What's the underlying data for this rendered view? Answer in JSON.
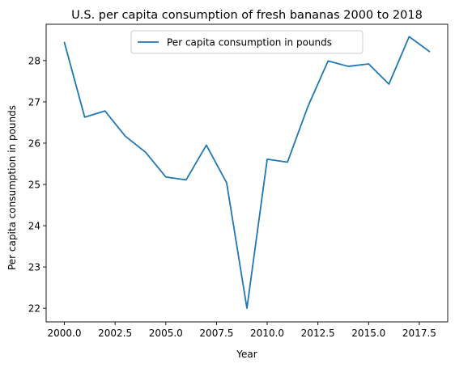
{
  "chart_data": {
    "type": "line",
    "title": "U.S. per capita consumption of fresh bananas 2000 to 2018",
    "xlabel": "Year",
    "ylabel": "Per capita consumption in pounds",
    "xlim": [
      1999.1,
      2018.9
    ],
    "ylim": [
      21.67,
      28.88
    ],
    "grid": false,
    "legend_position": "upper-center",
    "xticks": [
      {
        "value": 2000.0,
        "label": "2000.0"
      },
      {
        "value": 2002.5,
        "label": "2002.5"
      },
      {
        "value": 2005.0,
        "label": "2005.0"
      },
      {
        "value": 2007.5,
        "label": "2007.5"
      },
      {
        "value": 2010.0,
        "label": "2010.0"
      },
      {
        "value": 2012.5,
        "label": "2012.5"
      },
      {
        "value": 2015.0,
        "label": "2015.0"
      },
      {
        "value": 2017.5,
        "label": "2017.5"
      }
    ],
    "yticks": [
      {
        "value": 22,
        "label": "22"
      },
      {
        "value": 23,
        "label": "23"
      },
      {
        "value": 24,
        "label": "24"
      },
      {
        "value": 25,
        "label": "25"
      },
      {
        "value": 26,
        "label": "26"
      },
      {
        "value": 27,
        "label": "27"
      },
      {
        "value": 28,
        "label": "28"
      }
    ],
    "x": [
      2000,
      2001,
      2002,
      2003,
      2004,
      2005,
      2006,
      2007,
      2008,
      2009,
      2010,
      2011,
      2012,
      2013,
      2014,
      2015,
      2016,
      2017,
      2018
    ],
    "series": [
      {
        "name": "Per capita consumption in pounds",
        "color": "#1f77b4",
        "values": [
          28.44,
          26.63,
          26.78,
          26.17,
          25.78,
          25.18,
          25.11,
          25.95,
          25.04,
          22.0,
          25.61,
          25.54,
          26.88,
          27.99,
          27.86,
          27.92,
          27.43,
          28.58,
          28.22
        ]
      }
    ]
  }
}
